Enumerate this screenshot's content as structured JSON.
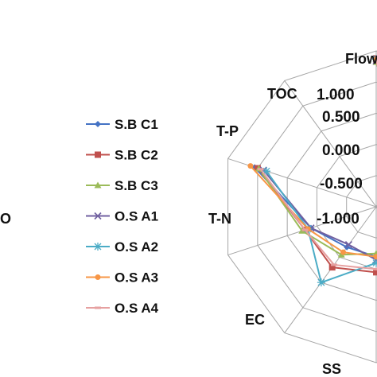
{
  "chart_data": {
    "type": "radar",
    "axes": [
      "Flow",
      "",
      "",
      "",
      "SS",
      "EC",
      "T-N",
      "T-P",
      "TOC",
      "DO"
    ],
    "visible_axis_labels": {
      "axis0": "Flow",
      "axis4": "SS",
      "axis5": "EC",
      "axis6": "T-N",
      "axis7": "T-P",
      "axis8": "TOC",
      "axis9": "O"
    },
    "radial_ticks": [
      "1.000",
      "0.500",
      "0.000",
      "-0.500",
      "-1.000"
    ],
    "radial_range": [
      -1.5,
      1.0
    ],
    "grid": true,
    "legend_position": "left",
    "series": [
      {
        "name": "S.B C1",
        "color": "#4472c4",
        "marker": "diamond",
        "values": [
          0.85,
          null,
          null,
          null,
          0.98,
          -0.7,
          -0.7,
          -0.4,
          0.55,
          null
        ]
      },
      {
        "name": "S.B C2",
        "color": "#c0504d",
        "marker": "square",
        "values": [
          0.88,
          null,
          null,
          null,
          0.7,
          -0.45,
          -0.3,
          -0.3,
          0.5,
          null
        ]
      },
      {
        "name": "S.B C3",
        "color": "#9bbb59",
        "marker": "triangle",
        "values": [
          0.82,
          null,
          null,
          null,
          0.8,
          -0.75,
          -0.55,
          -0.25,
          0.48,
          null
        ]
      },
      {
        "name": "O.S A1",
        "color": "#7060a0",
        "marker": "x",
        "values": [
          0.84,
          null,
          null,
          null,
          0.98,
          -0.65,
          -0.75,
          -0.4,
          0.4,
          null
        ]
      },
      {
        "name": "O.S A2",
        "color": "#4bacc6",
        "marker": "star",
        "values": [
          0.87,
          null,
          null,
          null,
          0.88,
          -0.6,
          0.0,
          -0.35,
          0.35,
          null
        ]
      },
      {
        "name": "O.S A3",
        "color": "#f79646",
        "marker": "circle",
        "values": [
          0.86,
          null,
          null,
          null,
          0.9,
          -0.7,
          -0.6,
          -0.35,
          0.62,
          null
        ]
      },
      {
        "name": "O.S A4",
        "color": "#e6a0a0",
        "marker": "dash",
        "values": [
          0.83,
          null,
          null,
          null,
          0.85,
          -0.5,
          -0.35,
          -0.3,
          0.45,
          null
        ]
      }
    ]
  }
}
